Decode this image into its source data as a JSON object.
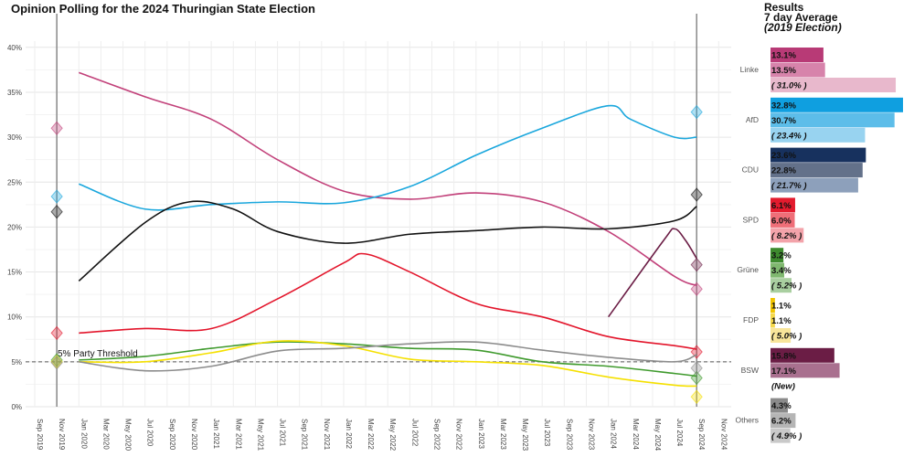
{
  "chart_data": [
    {
      "type": "line",
      "title": "Opinion Polling for the 2024 Thuringian State Election",
      "ylim": [
        0,
        42
      ],
      "yticks": [
        "0%",
        "5%",
        "10%",
        "15%",
        "20%",
        "25%",
        "30%",
        "35%",
        "40%"
      ],
      "xticks": [
        "Sep 2019",
        "Nov 2019",
        "Jan 2020",
        "Mar 2020",
        "May 2020",
        "Jul 2020",
        "Sep 2020",
        "Nov 2020",
        "Jan 2021",
        "Mar 2021",
        "May 2021",
        "Jul 2021",
        "Sep 2021",
        "Nov 2021",
        "Jan 2022",
        "Mar 2022",
        "May 2022",
        "Jul 2022",
        "Sep 2022",
        "Nov 2022",
        "Jan 2023",
        "Mar 2023",
        "May 2023",
        "Jul 2023",
        "Sep 2023",
        "Nov 2023",
        "Jan 2024",
        "Mar 2024",
        "May 2024",
        "Jul 2024",
        "Sep 2024",
        "Nov 2024"
      ],
      "grid": true,
      "threshold": {
        "value": 5,
        "label": "5% Party Threshold"
      },
      "election_dates": [
        "2019-11",
        "2024-09"
      ],
      "series": [
        {
          "name": "Linke",
          "color": "#c2417a",
          "x": [
            "2020-01",
            "2020-07",
            "2021-01",
            "2021-07",
            "2022-01",
            "2022-07",
            "2023-01",
            "2023-07",
            "2024-01",
            "2024-07",
            "2024-09"
          ],
          "y": [
            37.2,
            34.5,
            32,
            27.5,
            24,
            23.1,
            23.8,
            22.8,
            19.5,
            14.5,
            13.5
          ],
          "election_2019": 31.0,
          "election_2024": 13.1
        },
        {
          "name": "AfD",
          "color": "#1aa7dd",
          "x": [
            "2020-01",
            "2020-07",
            "2021-01",
            "2021-07",
            "2022-01",
            "2022-07",
            "2023-01",
            "2023-07",
            "2024-01",
            "2024-03",
            "2024-07",
            "2024-09"
          ],
          "y": [
            24.8,
            22,
            22.5,
            22.8,
            22.7,
            24.5,
            28,
            31,
            33.5,
            32,
            30,
            30
          ],
          "election_2019": 23.4,
          "election_2024": 32.8
        },
        {
          "name": "CDU",
          "color": "#111111",
          "x": [
            "2020-01",
            "2020-07",
            "2020-11",
            "2021-03",
            "2021-07",
            "2022-01",
            "2022-07",
            "2023-01",
            "2023-07",
            "2024-01",
            "2024-07",
            "2024-09"
          ],
          "y": [
            14,
            20.5,
            22.8,
            22,
            19.5,
            18.2,
            19.2,
            19.6,
            20,
            19.8,
            20.7,
            22.3
          ],
          "election_2019": 21.7,
          "election_2024": 23.6
        },
        {
          "name": "SPD",
          "color": "#e3152b",
          "x": [
            "2020-01",
            "2020-07",
            "2021-01",
            "2021-07",
            "2022-01",
            "2022-03",
            "2022-07",
            "2023-01",
            "2023-07",
            "2024-01",
            "2024-07",
            "2024-09"
          ],
          "y": [
            8.2,
            8.7,
            8.7,
            12,
            16,
            17,
            15,
            11.5,
            10,
            7.8,
            6.8,
            6.4
          ],
          "election_2019": 8.2,
          "election_2024": 6.1
        },
        {
          "name": "Grüne",
          "color": "#3f9a2d",
          "x": [
            "2020-01",
            "2020-07",
            "2021-01",
            "2021-07",
            "2022-01",
            "2022-07",
            "2023-01",
            "2023-07",
            "2024-01",
            "2024-07",
            "2024-09"
          ],
          "y": [
            5.2,
            5.6,
            6.5,
            7.2,
            7,
            6.5,
            6.3,
            5,
            4.5,
            3.7,
            3.4
          ],
          "election_2019": 5.2,
          "election_2024": 3.2
        },
        {
          "name": "FDP",
          "color": "#f5e000",
          "x": [
            "2020-01",
            "2020-07",
            "2021-01",
            "2021-07",
            "2022-01",
            "2022-07",
            "2023-01",
            "2023-07",
            "2024-01",
            "2024-07",
            "2024-09"
          ],
          "y": [
            5,
            5,
            6,
            7.3,
            6.8,
            5.3,
            5,
            4.6,
            3.3,
            2.4,
            2.3
          ],
          "election_2019": 5.0,
          "election_2024": 1.1
        },
        {
          "name": "Others",
          "color": "#8c8c8c",
          "x": [
            "2020-01",
            "2020-07",
            "2021-01",
            "2021-07",
            "2022-01",
            "2022-07",
            "2023-01",
            "2023-07",
            "2024-01",
            "2024-07",
            "2024-09"
          ],
          "y": [
            5,
            4,
            4.5,
            6.2,
            6.5,
            7,
            7.2,
            6.3,
            5.5,
            5,
            5.8
          ],
          "election_2019": 4.9,
          "election_2024": 4.3
        },
        {
          "name": "BSW",
          "color": "#6b1d45",
          "x": [
            "2024-01",
            "2024-06",
            "2024-07",
            "2024-08",
            "2024-09"
          ],
          "y": [
            10,
            18.5,
            19.8,
            18.5,
            16.5
          ],
          "election_2024": 15.8
        }
      ]
    },
    {
      "type": "bar",
      "title": "Results",
      "subtitle": "7 day Average",
      "subtitle2": "(2019 Election)",
      "categories": [
        "Linke",
        "AfD",
        "CDU",
        "SPD",
        "Grüne",
        "FDP",
        "BSW",
        "Others"
      ],
      "series": [
        {
          "name": "Results",
          "values": [
            13.1,
            32.8,
            23.6,
            6.1,
            3.2,
            1.1,
            15.8,
            4.3
          ],
          "labels": [
            "13.1%",
            "32.8%",
            "23.6%",
            "6.1%",
            "3.2%",
            "1.1%",
            "15.8%",
            "4.3%"
          ]
        },
        {
          "name": "7 day Average",
          "values": [
            13.5,
            30.7,
            22.8,
            6.0,
            3.4,
            1.1,
            17.1,
            6.2
          ],
          "labels": [
            "13.5%",
            "30.7%",
            "22.8%",
            "6.0%",
            "3.4%",
            "1.1%",
            "17.1%",
            "6.2%"
          ]
        },
        {
          "name": "2019 Election",
          "values": [
            31.0,
            23.4,
            21.7,
            8.2,
            5.2,
            5.0,
            null,
            4.9
          ],
          "labels": [
            "( 31.0% )",
            "( 23.4% )",
            "( 21.7% )",
            "( 8.2% )",
            "( 5.2% )",
            "( 5.0% )",
            "(New)",
            "( 4.9% )"
          ]
        }
      ],
      "colors": [
        [
          "#b83a76",
          "#d783ab",
          "#e8b8cc"
        ],
        [
          "#0f9fe0",
          "#5dbde9",
          "#98d3f0"
        ],
        [
          "#17315e",
          "#63718a",
          "#8da0bb"
        ],
        [
          "#e31b2e",
          "#ef6e78",
          "#f3a3aa"
        ],
        [
          "#3d8a2e",
          "#7fb86f",
          "#a9cfa0"
        ],
        [
          "#f0c400",
          "#f5d84c",
          "#f8e59a"
        ],
        [
          "#6b1d45",
          "#a9708f",
          "#ffffff"
        ],
        [
          "#8a8a8a",
          "#b5b5b5",
          "#c9c9c9"
        ]
      ]
    }
  ]
}
